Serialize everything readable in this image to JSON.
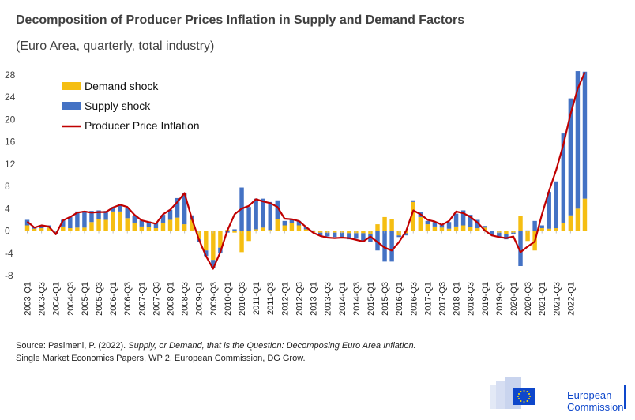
{
  "header": {
    "title": "Decomposition of Producer Prices Inflation in Supply and Demand Factors",
    "subtitle": "(Euro Area, quarterly, total industry)"
  },
  "source": {
    "prefix": "Source: Pasimeni, P. (2022). ",
    "italic": "Supply, or Demand, that is the Question: Decomposing Euro Area Inflation.",
    "line2": "Single Market Economics Papers, WP 2. European Commission, DG Grow."
  },
  "logo": {
    "line1": "European",
    "line2": "Commission"
  },
  "colors": {
    "demand": "#f5be12",
    "supply": "#4472c4",
    "ppi": "#c00000",
    "axis": "#bfbfbf"
  },
  "chart_data": {
    "type": "bar",
    "stacked": true,
    "legend_position": "top-left",
    "grid": false,
    "ylim": [
      -8,
      28
    ],
    "yticks": [
      -8,
      -4,
      0,
      4,
      8,
      12,
      16,
      20,
      24,
      28
    ],
    "tick_labels": [
      "2003-Q1",
      "2003-Q3",
      "2004-Q1",
      "2004-Q3",
      "2005-Q1",
      "2005-Q3",
      "2006-Q1",
      "2006-Q3",
      "2007-Q1",
      "2007-Q3",
      "2008-Q1",
      "2008-Q3",
      "2009-Q1",
      "2009-Q3",
      "2010-Q1",
      "2010-Q3",
      "2011-Q1",
      "2011-Q3",
      "2012-Q1",
      "2012-Q3",
      "2013-Q1",
      "2013-Q3",
      "2014-Q1",
      "2014-Q3",
      "2015-Q1",
      "2015-Q3",
      "2016-Q1",
      "2016-Q3",
      "2017-Q1",
      "2017-Q3",
      "2018-Q1",
      "2018-Q3",
      "2019-Q1",
      "2019-Q3",
      "2020-Q1",
      "2020-Q3",
      "2021-Q1",
      "2021-Q3",
      "2022-Q1"
    ],
    "series": [
      {
        "name": "Demand shock",
        "kind": "bar",
        "values": [
          1.0,
          0.4,
          0.5,
          0.6,
          -0.1,
          0.8,
          0.5,
          0.6,
          0.6,
          1.6,
          2.2,
          2.0,
          3.5,
          3.5,
          2.3,
          1.5,
          0.8,
          0.7,
          0.5,
          1.5,
          2.0,
          2.4,
          1.2,
          2.0,
          -1.5,
          -3.5,
          -5.2,
          -3.0,
          0.2,
          -0.3,
          -3.8,
          -1.8,
          0.3,
          0.6,
          0.2,
          2.2,
          1.0,
          1.4,
          1.0,
          0.3,
          -0.2,
          -0.3,
          -0.3,
          -0.3,
          -0.3,
          -0.4,
          -0.4,
          -0.4,
          -0.5,
          1.2,
          2.5,
          2.1,
          -0.8,
          -0.4,
          5.2,
          2.5,
          1.2,
          0.8,
          0.6,
          0.4,
          0.8,
          1.0,
          0.7,
          0.5,
          0.6,
          0,
          -0.3,
          -0.5,
          -0.3,
          2.7,
          -1.8,
          -3.5,
          0.5,
          0.4,
          0.5,
          1.5,
          2.8,
          4.0,
          5.8
        ],
        "labels": []
      },
      {
        "name": "Supply shock",
        "kind": "bar",
        "values": [
          1.0,
          0.3,
          0.5,
          0.4,
          -0.5,
          1.2,
          2.0,
          2.9,
          3.0,
          2.0,
          1.5,
          1.6,
          0.8,
          1.3,
          1.8,
          1.2,
          1.1,
          1.0,
          0.9,
          1.4,
          1.8,
          3.5,
          5.6,
          0.8,
          -0.5,
          -1.0,
          -1.5,
          -1.0,
          -0.3,
          0.3,
          7.8,
          4.3,
          5.5,
          5.2,
          5.0,
          3.3,
          0.8,
          0.6,
          0.8,
          0.4,
          0.1,
          -0.6,
          -0.7,
          -0.8,
          -0.9,
          -1.1,
          -1.0,
          -1.3,
          -1.5,
          -3.5,
          -5.5,
          -5.5,
          -0.3,
          -0.4,
          0.3,
          0.9,
          0.6,
          0.8,
          0.5,
          1.2,
          2.3,
          2.7,
          2.2,
          1.5,
          0.3,
          -0.8,
          -0.8,
          -1.0,
          -0.3,
          -6.3,
          0.1,
          1.8,
          0.5,
          6.6,
          8.4,
          16.0,
          21.0,
          24.7,
          22.8
        ],
        "labels": []
      },
      {
        "name": "Producer Price Inflation",
        "kind": "line",
        "values": [
          1.7,
          0.6,
          1.0,
          0.8,
          -0.6,
          1.9,
          2.5,
          3.3,
          3.5,
          3.3,
          3.4,
          3.4,
          4.2,
          4.7,
          4.3,
          2.9,
          1.9,
          1.6,
          1.3,
          3.0,
          3.8,
          5.2,
          6.8,
          2.3,
          -1.5,
          -4.5,
          -6.8,
          -3.8,
          0.1,
          3.0,
          4.0,
          4.5,
          5.7,
          5.3,
          5.0,
          4.3,
          2.2,
          2.1,
          1.8,
          0.7,
          -0.3,
          -0.9,
          -1.2,
          -1.3,
          -1.2,
          -1.3,
          -1.6,
          -1.9,
          -1.0,
          -2.0,
          -3.0,
          -3.5,
          -2.0,
          0.0,
          3.7,
          3.0,
          2.0,
          1.7,
          1.1,
          1.8,
          3.5,
          3.2,
          2.5,
          1.5,
          0.1,
          -0.8,
          -1.1,
          -1.3,
          -1.0,
          -3.8,
          -2.8,
          -1.9,
          3.0,
          7.2,
          11.0,
          15.5,
          21.0,
          25.5,
          28.5
        ],
        "labels": []
      }
    ]
  }
}
